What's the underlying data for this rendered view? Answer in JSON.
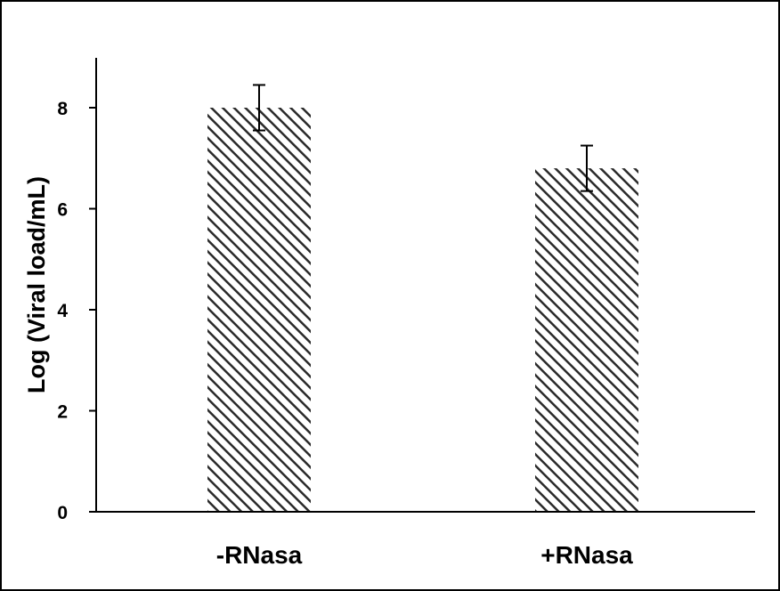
{
  "chart_data": {
    "type": "bar",
    "title": "",
    "xlabel": "",
    "ylabel": "Log (Viral load/mL)",
    "categories": [
      "-RNasa",
      "+RNasa"
    ],
    "values": [
      8.0,
      6.8
    ],
    "error": [
      0.45,
      0.45
    ],
    "ylim": [
      0,
      9
    ],
    "yticks": [
      0,
      2,
      4,
      6,
      8
    ],
    "grid": false,
    "legend": "none",
    "bar_fill": "diagonal-hatch",
    "colors": {
      "bar_hatch": "#2a2a2a",
      "axis": "#000000",
      "border": "#000000"
    }
  }
}
